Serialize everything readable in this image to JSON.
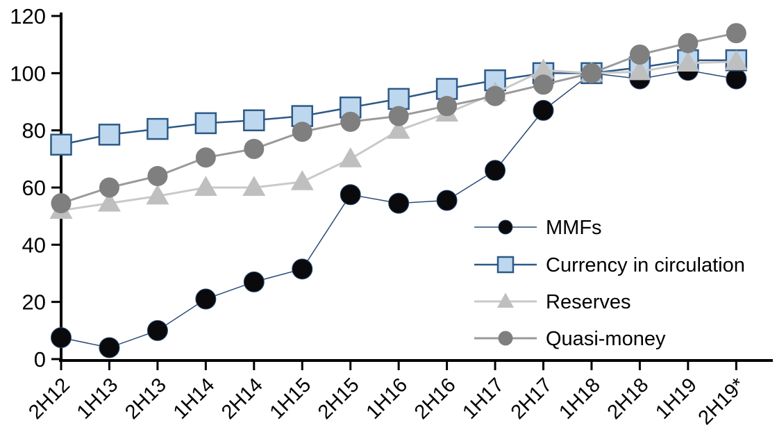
{
  "chart_data": {
    "type": "line",
    "title": "",
    "xlabel": "",
    "ylabel": "",
    "grid": false,
    "legend_position": "center-right",
    "ylim": [
      0,
      120
    ],
    "y_ticks": [
      0,
      20,
      40,
      60,
      80,
      100,
      120
    ],
    "categories": [
      "2H12",
      "1H13",
      "2H13",
      "1H14",
      "2H14",
      "1H15",
      "2H15",
      "1H16",
      "2H16",
      "1H17",
      "2H17",
      "1H18",
      "2H18",
      "1H19",
      "2H19*"
    ],
    "series": [
      {
        "name": "MMFs",
        "marker": "circle",
        "marker_color": "#0a0a0c",
        "marker_border": "#2b4a77",
        "line_color": "#2b4a77",
        "values": [
          7.5,
          4,
          10,
          21,
          27,
          31.5,
          57.5,
          54.5,
          55.5,
          66,
          87,
          100,
          98,
          101,
          98
        ]
      },
      {
        "name": "Currency in circulation",
        "marker": "square",
        "marker_color": "#bdd7ee",
        "marker_border": "#2d5986",
        "line_color": "#2d5986",
        "values": [
          75,
          78.5,
          80.5,
          82.5,
          83.5,
          85,
          88,
          91,
          94.5,
          97.5,
          100,
          100,
          102,
          104.5,
          104.5
        ]
      },
      {
        "name": "Reserves",
        "marker": "triangle",
        "marker_color": "#bfbfbf",
        "marker_border": "#bfbfbf",
        "line_color": "#c9c9c9",
        "values": [
          52,
          54.5,
          57,
          60,
          60,
          62,
          70,
          80,
          86,
          93,
          101,
          100,
          100.5,
          103.5,
          104
        ]
      },
      {
        "name": "Quasi-money",
        "marker": "circle",
        "marker_color": "#7f7f7f",
        "marker_border": "#7f7f7f",
        "line_color": "#9a9a9a",
        "values": [
          54.5,
          60,
          64,
          70.5,
          73.5,
          79.5,
          83,
          85,
          88.5,
          92,
          96,
          100,
          106.5,
          110.5,
          114
        ]
      }
    ]
  },
  "colors": {
    "axis": "#000000",
    "text": "#000000",
    "background": "#ffffff"
  }
}
